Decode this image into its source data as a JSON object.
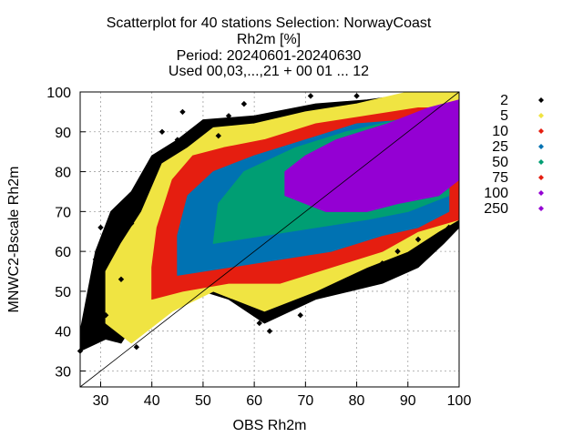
{
  "chart_data": {
    "type": "scatter",
    "title_lines": [
      "Scatterplot for   40 stations Selection: NorwayCoast",
      "Rh2m [%]",
      "Period: 20240601-20240630",
      "Used 00,03,...,21 + 00 01 ... 12"
    ],
    "xlabel": "OBS Rh2m",
    "ylabel": "MNWC2-Bscale Rh2m",
    "xlim": [
      26,
      100
    ],
    "ylim": [
      26,
      100
    ],
    "x_ticks": [
      "30",
      "40",
      "50",
      "60",
      "70",
      "80",
      "90",
      "100"
    ],
    "y_ticks": [
      "30",
      "40",
      "50",
      "60",
      "70",
      "80",
      "90",
      "100"
    ],
    "grid": true,
    "diagonal_reference_line": true,
    "legend_placement": "right",
    "legend": [
      {
        "label": "2",
        "color": "#000000"
      },
      {
        "label": "5",
        "color": "#f0e442"
      },
      {
        "label": "10",
        "color": "#e51e10"
      },
      {
        "label": "25",
        "color": "#0072b2"
      },
      {
        "label": "50",
        "color": "#009e73"
      },
      {
        "label": "75",
        "color": "#e51e10"
      },
      {
        "label": "100",
        "color": "#9400d3"
      },
      {
        "label": "250",
        "color": "#9400d3"
      }
    ],
    "density_bands": [
      {
        "level": "2",
        "color": "#000000",
        "polygon": [
          [
            26,
            35
          ],
          [
            31,
            38
          ],
          [
            34,
            37
          ],
          [
            38,
            45
          ],
          [
            45,
            52
          ],
          [
            55,
            48
          ],
          [
            62,
            42
          ],
          [
            72,
            48
          ],
          [
            85,
            52
          ],
          [
            92,
            56
          ],
          [
            97,
            62
          ],
          [
            100,
            66
          ],
          [
            100,
            100
          ],
          [
            94,
            100
          ],
          [
            82,
            98
          ],
          [
            72,
            97
          ],
          [
            60,
            94
          ],
          [
            50,
            93
          ],
          [
            45,
            88
          ],
          [
            40,
            84
          ],
          [
            36,
            75
          ],
          [
            32,
            70
          ],
          [
            29,
            60
          ],
          [
            26,
            40
          ]
        ]
      },
      {
        "level": "5",
        "color": "#f0e442",
        "polygon": [
          [
            31,
            42
          ],
          [
            36,
            37
          ],
          [
            44,
            45
          ],
          [
            52,
            50
          ],
          [
            62,
            45
          ],
          [
            72,
            50
          ],
          [
            82,
            56
          ],
          [
            90,
            60
          ],
          [
            96,
            65
          ],
          [
            100,
            68
          ],
          [
            100,
            100
          ],
          [
            90,
            100
          ],
          [
            80,
            97
          ],
          [
            70,
            95
          ],
          [
            60,
            92
          ],
          [
            52,
            91
          ],
          [
            47,
            86
          ],
          [
            42,
            82
          ],
          [
            38,
            70
          ],
          [
            34,
            62
          ],
          [
            31,
            55
          ]
        ]
      },
      {
        "level": "10",
        "color": "#e51e10",
        "polygon": [
          [
            40,
            48
          ],
          [
            46,
            50
          ],
          [
            55,
            52
          ],
          [
            65,
            52
          ],
          [
            75,
            56
          ],
          [
            85,
            60
          ],
          [
            92,
            65
          ],
          [
            100,
            68
          ],
          [
            100,
            96
          ],
          [
            92,
            96
          ],
          [
            82,
            94
          ],
          [
            72,
            92
          ],
          [
            62,
            88
          ],
          [
            54,
            86
          ],
          [
            48,
            84
          ],
          [
            44,
            78
          ],
          [
            41,
            66
          ],
          [
            40,
            56
          ]
        ]
      },
      {
        "level": "25",
        "color": "#0072b2",
        "polygon": [
          [
            45,
            54
          ],
          [
            55,
            56
          ],
          [
            65,
            58
          ],
          [
            75,
            60
          ],
          [
            85,
            64
          ],
          [
            92,
            66
          ],
          [
            98,
            70
          ],
          [
            98,
            94
          ],
          [
            90,
            93
          ],
          [
            80,
            92
          ],
          [
            70,
            88
          ],
          [
            60,
            84
          ],
          [
            52,
            80
          ],
          [
            47,
            74
          ],
          [
            45,
            64
          ]
        ]
      },
      {
        "level": "50",
        "color": "#009e73",
        "polygon": [
          [
            52,
            62
          ],
          [
            62,
            64
          ],
          [
            72,
            66
          ],
          [
            82,
            68
          ],
          [
            90,
            70
          ],
          [
            98,
            74
          ],
          [
            98,
            95
          ],
          [
            88,
            93
          ],
          [
            78,
            90
          ],
          [
            68,
            86
          ],
          [
            58,
            80
          ],
          [
            53,
            72
          ]
        ]
      },
      {
        "level": "100",
        "color": "#9400d3",
        "polygon": [
          [
            66,
            74
          ],
          [
            74,
            70
          ],
          [
            82,
            70
          ],
          [
            88,
            72
          ],
          [
            96,
            74
          ],
          [
            100,
            78
          ],
          [
            100,
            98
          ],
          [
            94,
            96
          ],
          [
            86,
            92
          ],
          [
            76,
            88
          ],
          [
            70,
            84
          ],
          [
            66,
            80
          ]
        ]
      }
    ],
    "outlier_points": [
      {
        "x": 26,
        "y": 35
      },
      {
        "x": 29,
        "y": 58
      },
      {
        "x": 30,
        "y": 66
      },
      {
        "x": 31,
        "y": 44
      },
      {
        "x": 32,
        "y": 39
      },
      {
        "x": 33,
        "y": 63
      },
      {
        "x": 34,
        "y": 53
      },
      {
        "x": 35,
        "y": 72
      },
      {
        "x": 36,
        "y": 67
      },
      {
        "x": 37,
        "y": 36
      },
      {
        "x": 38,
        "y": 75
      },
      {
        "x": 40,
        "y": 79
      },
      {
        "x": 42,
        "y": 90
      },
      {
        "x": 45,
        "y": 88
      },
      {
        "x": 46,
        "y": 95
      },
      {
        "x": 50,
        "y": 92
      },
      {
        "x": 53,
        "y": 89
      },
      {
        "x": 55,
        "y": 94
      },
      {
        "x": 58,
        "y": 97
      },
      {
        "x": 61,
        "y": 42
      },
      {
        "x": 63,
        "y": 40
      },
      {
        "x": 66,
        "y": 46
      },
      {
        "x": 69,
        "y": 44
      },
      {
        "x": 72,
        "y": 49
      },
      {
        "x": 76,
        "y": 50
      },
      {
        "x": 79,
        "y": 53
      },
      {
        "x": 82,
        "y": 55
      },
      {
        "x": 85,
        "y": 57
      },
      {
        "x": 88,
        "y": 60
      },
      {
        "x": 92,
        "y": 63
      },
      {
        "x": 95,
        "y": 62
      },
      {
        "x": 98,
        "y": 66
      },
      {
        "x": 71,
        "y": 99
      },
      {
        "x": 80,
        "y": 99
      }
    ]
  }
}
